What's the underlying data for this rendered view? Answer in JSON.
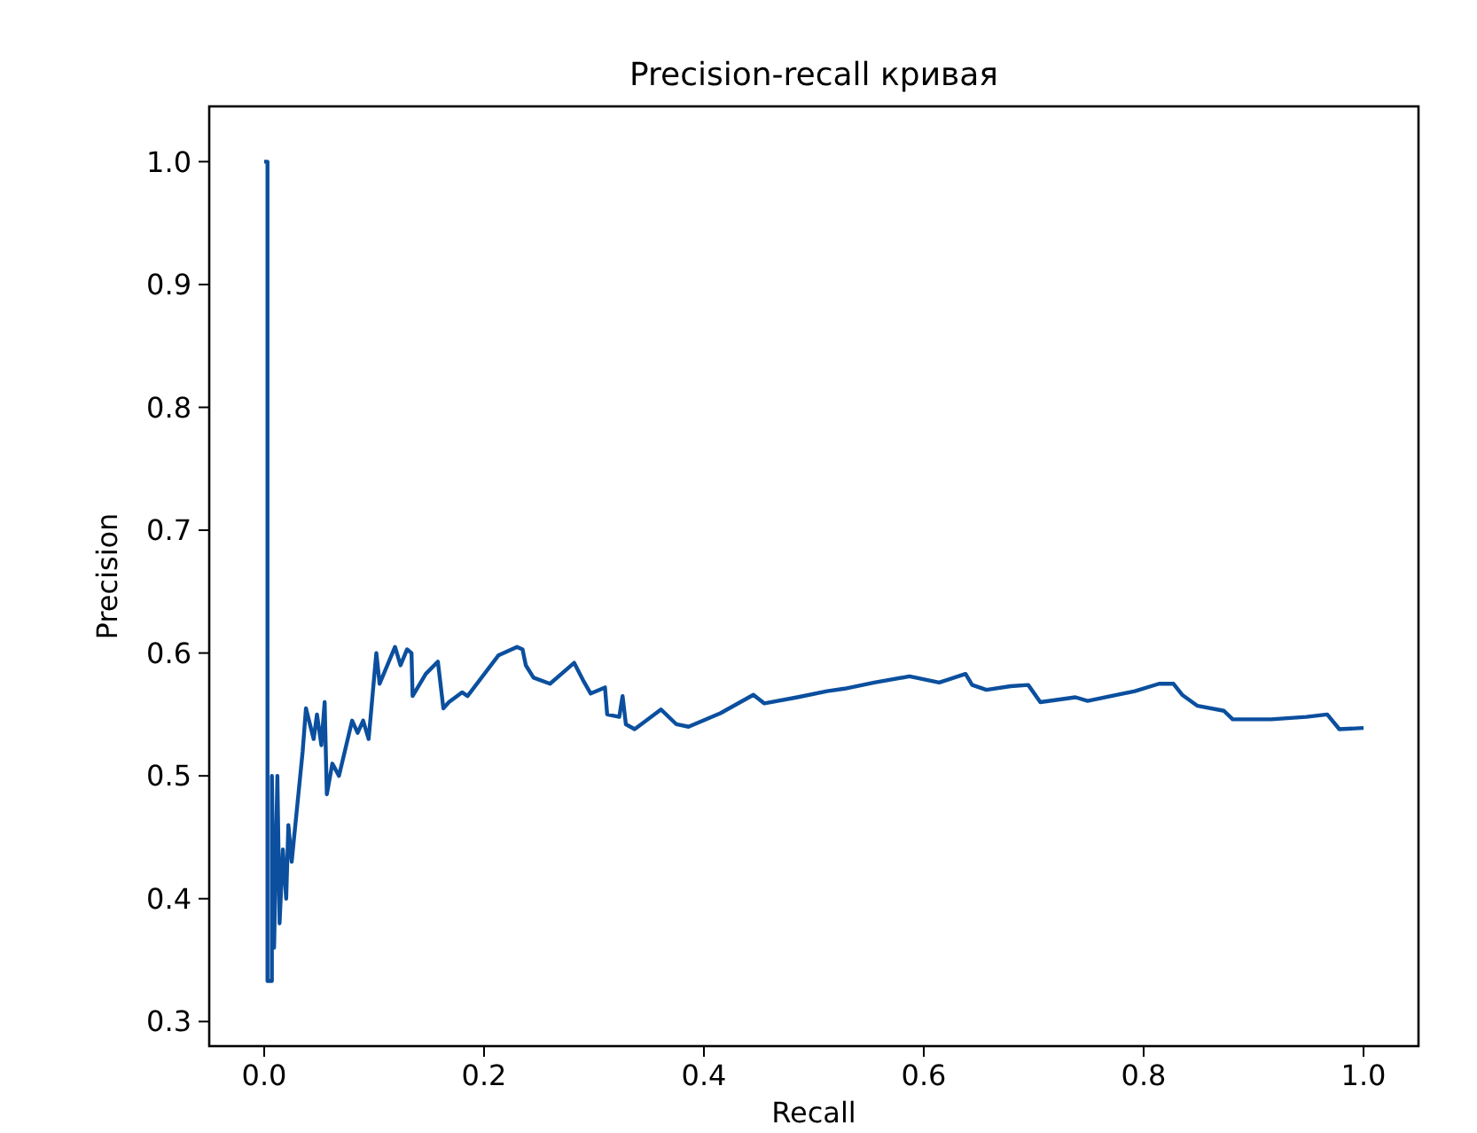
{
  "chart_data": {
    "type": "line",
    "title": "Precision-recall кривая",
    "xlabel": "Recall",
    "ylabel": "Precision",
    "xlim": [
      -0.05,
      1.05
    ],
    "ylim": [
      0.28,
      1.045
    ],
    "xticks": [
      {
        "value": 0,
        "label": "0.0"
      },
      0.2,
      0.4,
      0.6,
      0.8,
      {
        "value": 1,
        "label": "1.0"
      }
    ],
    "yticks": [
      0.3,
      0.4,
      0.5,
      0.6,
      0.7,
      0.8,
      0.9,
      {
        "value": 1,
        "label": "1.0"
      }
    ],
    "grid": false,
    "marker": "none",
    "line_style": "solid",
    "series": [
      {
        "color": "#0b4f9e",
        "x": [
          0,
          0.003,
          0.003,
          0.007,
          0.007,
          0.009,
          0.012,
          0.014,
          0.017,
          0.02,
          0.022,
          0.025,
          0.035,
          0.038,
          0.045,
          0.048,
          0.052,
          0.055,
          0.057,
          0.062,
          0.068,
          0.08,
          0.085,
          0.09,
          0.095,
          0.102,
          0.105,
          0.119,
          0.124,
          0.13,
          0.134,
          0.135,
          0.147,
          0.158,
          0.163,
          0.168,
          0.18,
          0.185,
          0.213,
          0.23,
          0.235,
          0.238,
          0.245,
          0.26,
          0.282,
          0.29,
          0.297,
          0.31,
          0.312,
          0.323,
          0.326,
          0.329,
          0.337,
          0.361,
          0.375,
          0.386,
          0.415,
          0.445,
          0.455,
          0.485,
          0.512,
          0.528,
          0.555,
          0.587,
          0.614,
          0.638,
          0.644,
          0.657,
          0.679,
          0.695,
          0.706,
          0.738,
          0.749,
          0.792,
          0.814,
          0.827,
          0.835,
          0.849,
          0.873,
          0.881,
          0.916,
          0.948,
          0.967,
          0.978,
          1.0
        ],
        "values": [
          1.0,
          1.0,
          0.333,
          0.333,
          0.5,
          0.36,
          0.5,
          0.38,
          0.44,
          0.4,
          0.46,
          0.43,
          0.52,
          0.555,
          0.53,
          0.55,
          0.525,
          0.56,
          0.485,
          0.51,
          0.5,
          0.545,
          0.535,
          0.545,
          0.53,
          0.6,
          0.575,
          0.605,
          0.59,
          0.603,
          0.6,
          0.565,
          0.583,
          0.593,
          0.555,
          0.56,
          0.568,
          0.565,
          0.598,
          0.605,
          0.603,
          0.59,
          0.58,
          0.575,
          0.592,
          0.578,
          0.567,
          0.572,
          0.55,
          0.548,
          0.565,
          0.542,
          0.538,
          0.554,
          0.542,
          0.54,
          0.551,
          0.566,
          0.559,
          0.564,
          0.569,
          0.571,
          0.576,
          0.581,
          0.576,
          0.583,
          0.574,
          0.57,
          0.573,
          0.574,
          0.56,
          0.564,
          0.561,
          0.569,
          0.575,
          0.575,
          0.566,
          0.557,
          0.553,
          0.546,
          0.546,
          0.548,
          0.55,
          0.538,
          0.539
        ]
      }
    ]
  }
}
